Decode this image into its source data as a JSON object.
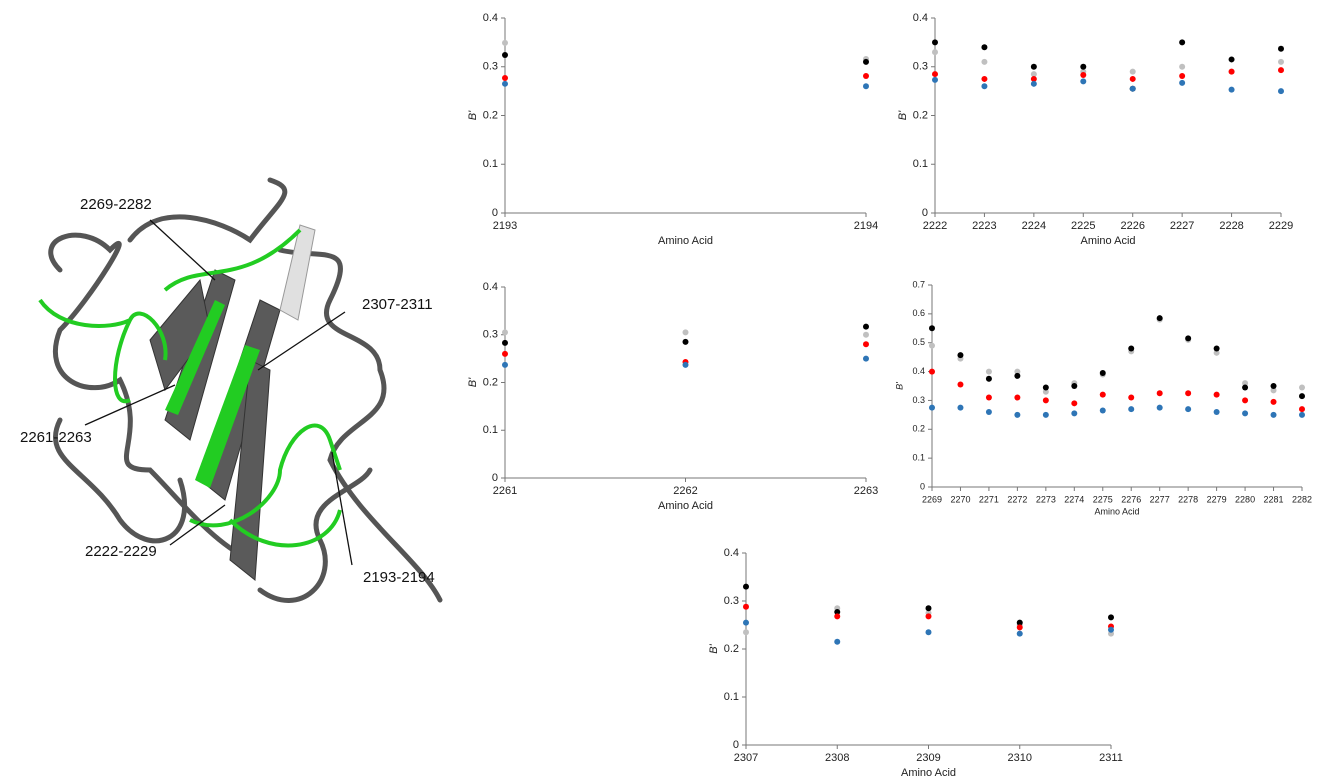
{
  "figure": {
    "labels": [
      "2269-2282",
      "2307-2311",
      "2261-2263",
      "2222-2229",
      "2193-2194"
    ]
  },
  "chart_data": [
    {
      "type": "scatter",
      "x": [
        2193,
        2194
      ],
      "xlim": [
        2193,
        2194
      ],
      "xticks": [
        2193,
        2194
      ],
      "ylim": [
        0,
        0.4
      ],
      "yticks": [
        0,
        0.1,
        0.2,
        0.3,
        0.4
      ],
      "xlabel": "Amino Acid",
      "ylabel": "B'",
      "series": [
        {
          "color": "#c0c0c0",
          "values": [
            0.349,
            0.316
          ]
        },
        {
          "color": "#000000",
          "values": [
            0.324,
            0.31
          ]
        },
        {
          "color": "#ff0000",
          "values": [
            0.277,
            0.281
          ]
        },
        {
          "color": "#2e75b6",
          "values": [
            0.265,
            0.26
          ]
        }
      ]
    },
    {
      "type": "scatter",
      "x": [
        2222,
        2223,
        2224,
        2225,
        2226,
        2227,
        2228,
        2229
      ],
      "xlim": [
        2222,
        2229
      ],
      "xticks": [
        2222,
        2223,
        2224,
        2225,
        2226,
        2227,
        2228,
        2229
      ],
      "ylim": [
        0,
        0.4
      ],
      "yticks": [
        0,
        0.1,
        0.2,
        0.3,
        0.4
      ],
      "xlabel": "Amino Acid",
      "ylabel": "B'",
      "series": [
        {
          "color": "#c0c0c0",
          "values": [
            0.33,
            0.31,
            0.285,
            0.29,
            0.29,
            0.3,
            0.29,
            0.31
          ]
        },
        {
          "color": "#000000",
          "values": [
            0.35,
            0.34,
            0.3,
            0.3,
            0.255,
            0.35,
            0.315,
            0.337
          ]
        },
        {
          "color": "#ff0000",
          "values": [
            0.285,
            0.275,
            0.275,
            0.283,
            0.275,
            0.281,
            0.29,
            0.293
          ]
        },
        {
          "color": "#2e75b6",
          "values": [
            0.273,
            0.26,
            0.265,
            0.27,
            0.255,
            0.267,
            0.253,
            0.25
          ]
        }
      ]
    },
    {
      "type": "scatter",
      "x": [
        2261,
        2262,
        2263
      ],
      "xlim": [
        2261,
        2263
      ],
      "xticks": [
        2261,
        2262,
        2263
      ],
      "ylim": [
        0,
        0.4
      ],
      "yticks": [
        0,
        0.1,
        0.2,
        0.3,
        0.4
      ],
      "xlabel": "Amino Acid",
      "ylabel": "B'",
      "series": [
        {
          "color": "#c0c0c0",
          "values": [
            0.305,
            0.305,
            0.3
          ]
        },
        {
          "color": "#000000",
          "values": [
            0.283,
            0.285,
            0.317
          ]
        },
        {
          "color": "#ff0000",
          "values": [
            0.26,
            0.243,
            0.28
          ]
        },
        {
          "color": "#2e75b6",
          "values": [
            0.237,
            0.237,
            0.25
          ]
        }
      ]
    },
    {
      "type": "scatter",
      "x": [
        2269,
        2270,
        2271,
        2272,
        2273,
        2274,
        2275,
        2276,
        2277,
        2278,
        2279,
        2280,
        2281,
        2282
      ],
      "xlim": [
        2269,
        2282
      ],
      "xticks": [
        2269,
        2270,
        2271,
        2272,
        2273,
        2274,
        2275,
        2276,
        2277,
        2278,
        2279,
        2280,
        2281,
        2282
      ],
      "ylim": [
        0,
        0.7
      ],
      "yticks": [
        0,
        0.1,
        0.2,
        0.3,
        0.4,
        0.5,
        0.6,
        0.7
      ],
      "xlabel": "Amino Acid",
      "ylabel": "B'",
      "series": [
        {
          "color": "#c0c0c0",
          "values": [
            0.49,
            0.445,
            0.4,
            0.4,
            0.33,
            0.36,
            0.39,
            0.47,
            0.58,
            0.51,
            0.465,
            0.36,
            0.335,
            0.345
          ]
        },
        {
          "color": "#000000",
          "values": [
            0.55,
            0.457,
            0.375,
            0.385,
            0.345,
            0.35,
            0.395,
            0.48,
            0.585,
            0.515,
            0.48,
            0.345,
            0.35,
            0.315
          ]
        },
        {
          "color": "#ff0000",
          "values": [
            0.4,
            0.355,
            0.31,
            0.31,
            0.3,
            0.29,
            0.32,
            0.31,
            0.325,
            0.325,
            0.32,
            0.3,
            0.295,
            0.27
          ]
        },
        {
          "color": "#2e75b6",
          "values": [
            0.275,
            0.275,
            0.26,
            0.25,
            0.25,
            0.255,
            0.265,
            0.27,
            0.275,
            0.27,
            0.26,
            0.255,
            0.25,
            0.25
          ]
        }
      ]
    },
    {
      "type": "scatter",
      "x": [
        2307,
        2308,
        2309,
        2310,
        2311
      ],
      "xlim": [
        2307,
        2311
      ],
      "xticks": [
        2307,
        2308,
        2309,
        2310,
        2311
      ],
      "ylim": [
        0,
        0.4
      ],
      "yticks": [
        0,
        0.1,
        0.2,
        0.3,
        0.4
      ],
      "xlabel": "Amino Acid",
      "ylabel": "B'",
      "series": [
        {
          "color": "#c0c0c0",
          "values": [
            0.235,
            0.285,
            0.275,
            0.25,
            0.232
          ]
        },
        {
          "color": "#000000",
          "values": [
            0.33,
            0.277,
            0.285,
            0.255,
            0.266
          ]
        },
        {
          "color": "#ff0000",
          "values": [
            0.288,
            0.268,
            0.268,
            0.245,
            0.247
          ]
        },
        {
          "color": "#2e75b6",
          "values": [
            0.255,
            0.215,
            0.235,
            0.232,
            0.24
          ]
        }
      ]
    }
  ]
}
